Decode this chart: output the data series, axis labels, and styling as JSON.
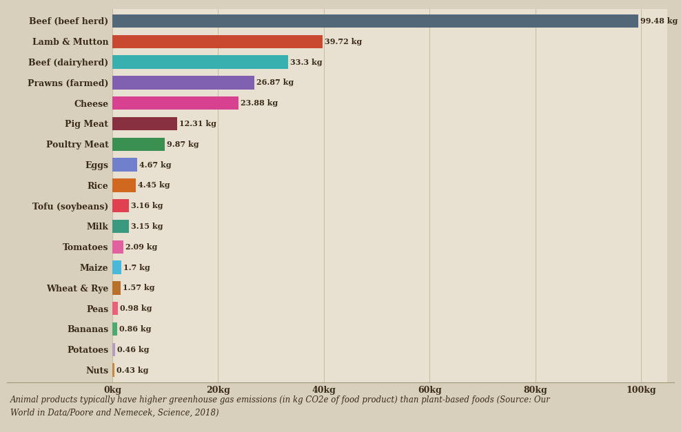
{
  "categories": [
    "Nuts",
    "Potatoes",
    "Bananas",
    "Peas",
    "Wheat & Rye",
    "Maize",
    "Tomatoes",
    "Milk",
    "Tofu (soybeans)",
    "Rice",
    "Eggs",
    "Poultry Meat",
    "Pig Meat",
    "Cheese",
    "Prawns (farmed)",
    "Beef (dairyherd)",
    "Lamb & Mutton",
    "Beef (beef herd)"
  ],
  "values": [
    0.43,
    0.46,
    0.86,
    0.98,
    1.57,
    1.7,
    2.09,
    3.15,
    3.16,
    4.45,
    4.67,
    9.87,
    12.31,
    23.88,
    26.87,
    33.3,
    39.72,
    99.48
  ],
  "labels": [
    "0.43 kg",
    "0.46 kg",
    "0.86 kg",
    "0.98 kg",
    "1.57 kg",
    "1.7 kg",
    "2.09 kg",
    "3.15 kg",
    "3.16 kg",
    "4.45 kg",
    "4.67 kg",
    "9.87 kg",
    "12.31 kg",
    "23.88 kg",
    "26.87 kg",
    "33.3 kg",
    "39.72 kg",
    "99.48 kg"
  ],
  "colors": [
    "#c8883a",
    "#b89ac0",
    "#4aaa70",
    "#e8607a",
    "#b8702a",
    "#4ab8d8",
    "#e060a0",
    "#3a9a80",
    "#e04050",
    "#d06820",
    "#7080cc",
    "#3a9050",
    "#883040",
    "#d84090",
    "#8060b0",
    "#38b0b0",
    "#c84830",
    "#526878"
  ],
  "chart_bg": "#e8e0d0",
  "fig_bg": "#d8d0bc",
  "text_color": "#3a2a18",
  "caption": "Animal products typically have higher greenhouse gas emissions (in kg CO2e of food product) than plant-based foods (Source: Our\nWorld in Data/Poore and Nemecek, Science, 2018)",
  "xlim": [
    0,
    105
  ],
  "xticks": [
    0,
    20,
    40,
    60,
    80,
    100
  ],
  "xtick_labels": [
    "0kg",
    "20kg",
    "40kg",
    "60kg",
    "80kg",
    "100kg"
  ]
}
